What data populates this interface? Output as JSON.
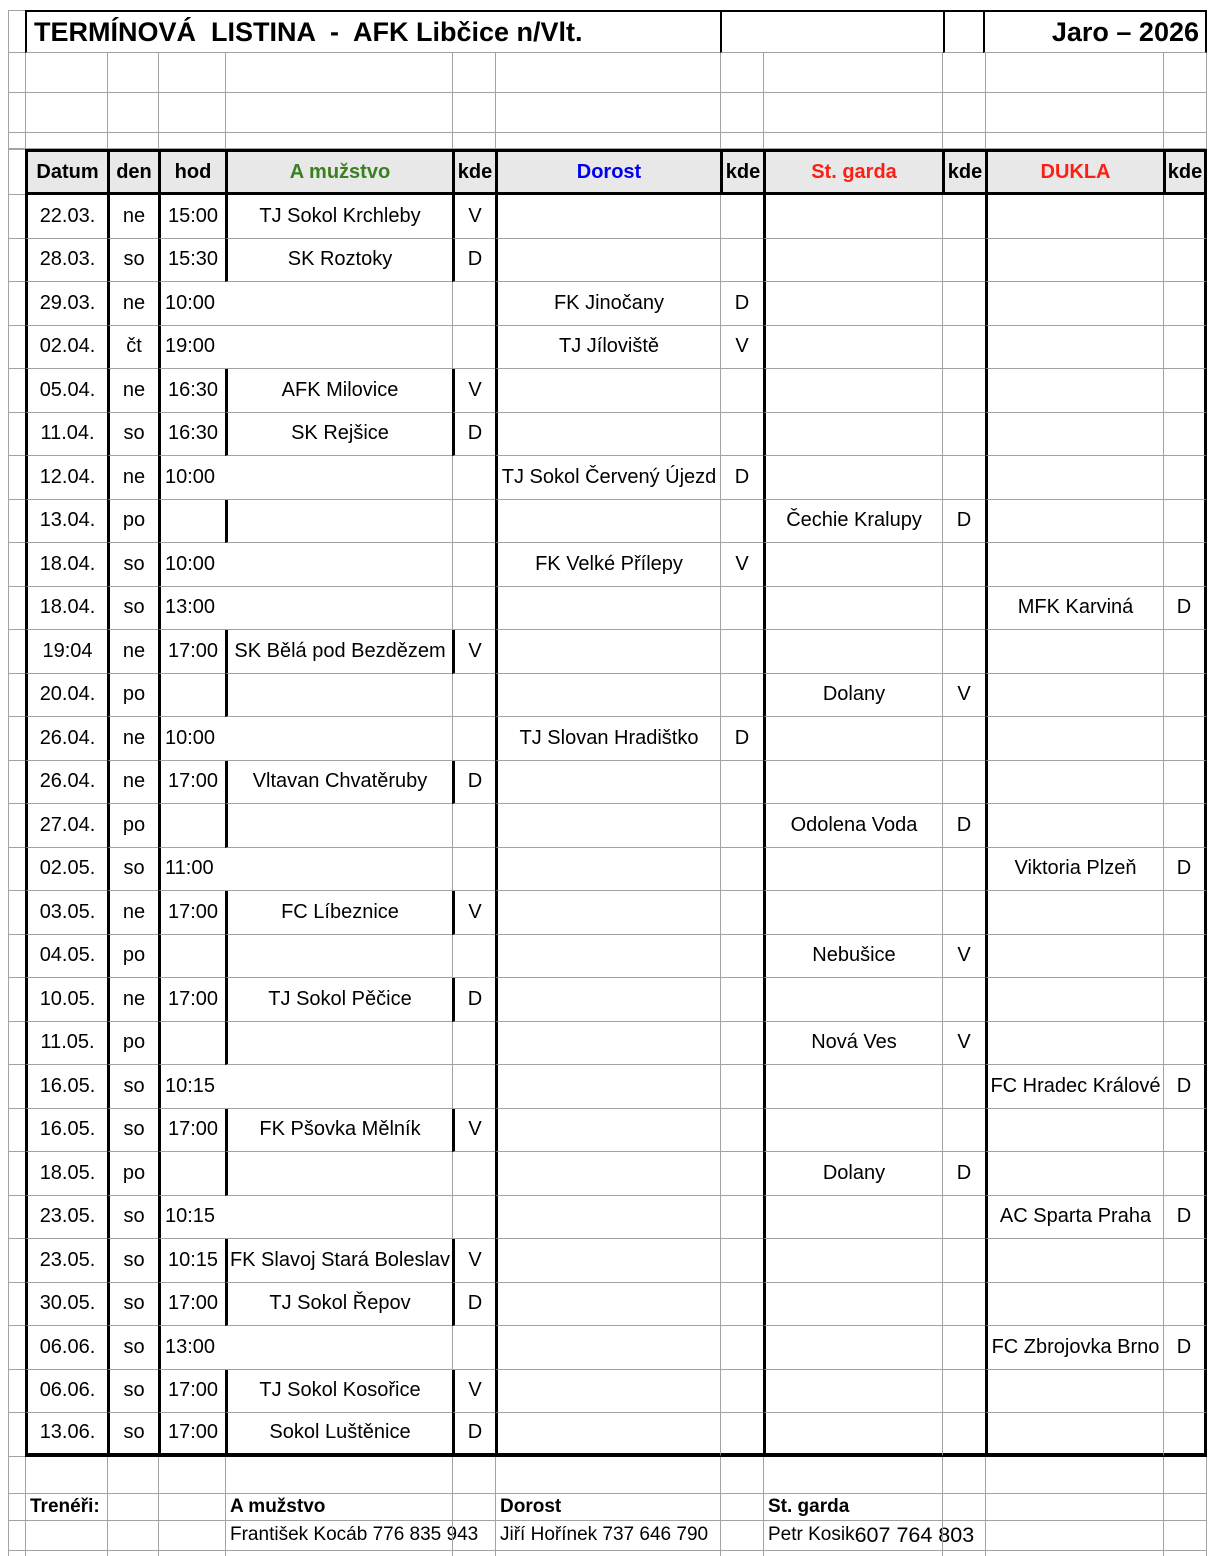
{
  "title": {
    "left": "TERMÍNOVÁ  LISTINA  -  AFK Libčice n/Vlt.",
    "right": "Jaro – 2026"
  },
  "header": {
    "datum": "Datum",
    "den": "den",
    "hod": "hod",
    "a": "A mužstvo",
    "kde": "kde",
    "dorost": "Dorost",
    "stgarda": "St. garda",
    "dukla": "DUKLA"
  },
  "colors": {
    "a_team": "#3a8020",
    "dorost": "#0000f0",
    "stgarda": "#fa2016",
    "dukla": "#fa2016",
    "gridline": "#a3a3a3",
    "header_bg": "#e8e8e8"
  },
  "rows": [
    {
      "date": "22.03.",
      "den": "ne",
      "hod": "15:00",
      "team": "TJ Sokol Krchleby",
      "col": "a",
      "kde": "V"
    },
    {
      "date": "28.03.",
      "den": "so",
      "hod": "15:30",
      "team": "SK Roztoky",
      "col": "a",
      "kde": "D"
    },
    {
      "date": "29.03.",
      "den": "ne",
      "hod": "10:00",
      "team": "FK Jinočany",
      "col": "dorost",
      "kde": "D"
    },
    {
      "date": "02.04.",
      "den": "čt",
      "hod": "19:00",
      "team": "TJ Jíloviště",
      "col": "dorost",
      "kde": "V"
    },
    {
      "date": "05.04.",
      "den": "ne",
      "hod": "16:30",
      "team": "AFK Milovice",
      "col": "a",
      "kde": "V"
    },
    {
      "date": "11.04.",
      "den": "so",
      "hod": "16:30",
      "team": "SK Rejšice",
      "col": "a",
      "kde": "D"
    },
    {
      "date": "12.04.",
      "den": "ne",
      "hod": "10:00",
      "team": "TJ Sokol Červený Újezd",
      "col": "dorost",
      "kde": "D"
    },
    {
      "date": "13.04.",
      "den": "po",
      "hod": "",
      "team": "Čechie Kralupy",
      "col": "stgarda",
      "kde": "D"
    },
    {
      "date": "18.04.",
      "den": "so",
      "hod": "10:00",
      "team": "FK Velké Přílepy",
      "col": "dorost",
      "kde": "V"
    },
    {
      "date": "18.04.",
      "den": "so",
      "hod": "13:00",
      "team": "MFK Karviná",
      "col": "dukla",
      "kde": "D"
    },
    {
      "date": "19:04",
      "den": "ne",
      "hod": "17:00",
      "team": "SK Bělá pod Bezdězem",
      "col": "a",
      "kde": "V"
    },
    {
      "date": "20.04.",
      "den": "po",
      "hod": "",
      "team": "Dolany",
      "col": "stgarda",
      "kde": "V"
    },
    {
      "date": "26.04.",
      "den": "ne",
      "hod": "10:00",
      "team": "TJ Slovan Hradištko",
      "col": "dorost",
      "kde": "D"
    },
    {
      "date": "26.04.",
      "den": "ne",
      "hod": "17:00",
      "team": "Vltavan Chvatěruby",
      "col": "a",
      "kde": "D"
    },
    {
      "date": "27.04.",
      "den": "po",
      "hod": "",
      "team": "Odolena Voda",
      "col": "stgarda",
      "kde": "D"
    },
    {
      "date": "02.05.",
      "den": "so",
      "hod": "11:00",
      "team": "Viktoria Plzeň",
      "col": "dukla",
      "kde": "D"
    },
    {
      "date": "03.05.",
      "den": "ne",
      "hod": "17:00",
      "team": "FC Líbeznice",
      "col": "a",
      "kde": "V"
    },
    {
      "date": "04.05.",
      "den": "po",
      "hod": "",
      "team": "Nebušice",
      "col": "stgarda",
      "kde": "V"
    },
    {
      "date": "10.05.",
      "den": "ne",
      "hod": "17:00",
      "team": "TJ Sokol Pěčice",
      "col": "a",
      "kde": "D"
    },
    {
      "date": "11.05.",
      "den": "po",
      "hod": "",
      "team": "Nová Ves",
      "col": "stgarda",
      "kde": "V"
    },
    {
      "date": "16.05.",
      "den": "so",
      "hod": "10:15",
      "team": "FC Hradec Králové",
      "col": "dukla",
      "kde": "D"
    },
    {
      "date": "16.05.",
      "den": "so",
      "hod": "17:00",
      "team": "FK Pšovka Mělník",
      "col": "a",
      "kde": "V"
    },
    {
      "date": "18.05.",
      "den": "po",
      "hod": "",
      "team": "Dolany",
      "col": "stgarda",
      "kde": "D"
    },
    {
      "date": "23.05.",
      "den": "so",
      "hod": "10:15",
      "team": "AC Sparta Praha",
      "col": "dukla",
      "kde": "D"
    },
    {
      "date": "23.05.",
      "den": "so",
      "hod": "10:15",
      "team": "FK Slavoj Stará Boleslav",
      "col": "a",
      "kde": "V"
    },
    {
      "date": "30.05.",
      "den": "so",
      "hod": "17:00",
      "team": "TJ Sokol Řepov",
      "col": "a",
      "kde": "D"
    },
    {
      "date": "06.06.",
      "den": "so",
      "hod": "13:00",
      "team": "FC Zbrojovka Brno",
      "col": "dukla",
      "kde": "D"
    },
    {
      "date": "06.06.",
      "den": "so",
      "hod": "17:00",
      "team": "TJ Sokol Kosořice",
      "col": "a",
      "kde": "V"
    },
    {
      "date": "13.06.",
      "den": "so",
      "hod": "17:00",
      "team": "Sokol Luštěnice",
      "col": "a",
      "kde": "D"
    }
  ],
  "footer": {
    "label": "Trenéři:",
    "sections": [
      {
        "team": "A mužstvo",
        "coach": "František Kocáb",
        "phone": "776 835 943"
      },
      {
        "team": "Dorost",
        "coach": "Jiří Hořínek",
        "phone": "737 646 790"
      },
      {
        "team": "St. garda",
        "coach": "Petr Kosik",
        "phone": "607 764 803"
      }
    ]
  }
}
